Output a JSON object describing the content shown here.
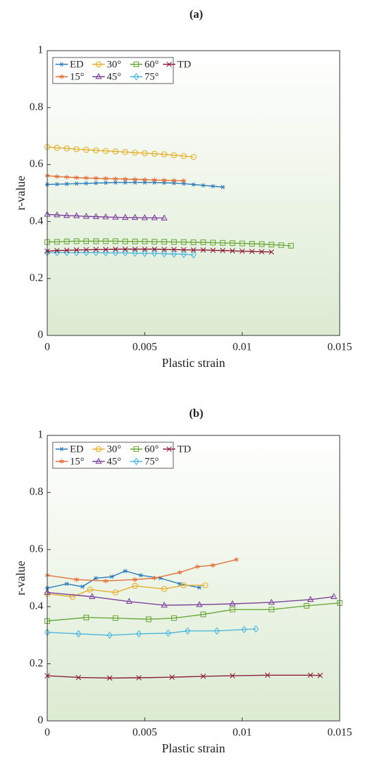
{
  "chart_data": [
    {
      "type": "line",
      "title": "(a)",
      "xlabel": "Plastic strain",
      "ylabel": "r-value",
      "xlim": [
        0,
        0.015
      ],
      "ylim": [
        0,
        1
      ],
      "xticks": [
        0,
        0.005,
        0.01,
        0.015
      ],
      "yticks": [
        0,
        0.2,
        0.4,
        0.6,
        0.8,
        1
      ],
      "series": [
        {
          "name": "ED",
          "color": "#2b7bba",
          "marker": "asterisk",
          "x": [
            0,
            0.0005,
            0.001,
            0.0015,
            0.002,
            0.0025,
            0.003,
            0.0035,
            0.004,
            0.0045,
            0.005,
            0.0055,
            0.006,
            0.0065,
            0.007,
            0.0075,
            0.008,
            0.0085,
            0.009
          ],
          "values": [
            0.53,
            0.531,
            0.532,
            0.533,
            0.534,
            0.535,
            0.536,
            0.537,
            0.537,
            0.537,
            0.537,
            0.537,
            0.536,
            0.535,
            0.533,
            0.53,
            0.527,
            0.524,
            0.521
          ]
        },
        {
          "name": "15°",
          "color": "#e2703a",
          "marker": "star",
          "x": [
            0,
            0.0005,
            0.001,
            0.0015,
            0.002,
            0.0025,
            0.003,
            0.0035,
            0.004,
            0.0045,
            0.005,
            0.0055,
            0.006,
            0.0065,
            0.007
          ],
          "values": [
            0.561,
            0.558,
            0.556,
            0.554,
            0.553,
            0.552,
            0.551,
            0.55,
            0.549,
            0.548,
            0.547,
            0.546,
            0.545,
            0.544,
            0.543
          ]
        },
        {
          "name": "30°",
          "color": "#e3ad2a",
          "marker": "circle",
          "x": [
            0,
            0.0005,
            0.001,
            0.0015,
            0.002,
            0.0025,
            0.003,
            0.0035,
            0.004,
            0.0045,
            0.005,
            0.0055,
            0.006,
            0.0065,
            0.007,
            0.0075
          ],
          "values": [
            0.662,
            0.659,
            0.657,
            0.654,
            0.652,
            0.65,
            0.648,
            0.646,
            0.644,
            0.642,
            0.64,
            0.638,
            0.636,
            0.633,
            0.63,
            0.627
          ]
        },
        {
          "name": "45°",
          "color": "#7c3f9e",
          "marker": "triangle",
          "x": [
            0,
            0.0005,
            0.001,
            0.0015,
            0.002,
            0.0025,
            0.003,
            0.0035,
            0.004,
            0.0045,
            0.005,
            0.0055,
            0.006
          ],
          "values": [
            0.425,
            0.423,
            0.421,
            0.42,
            0.418,
            0.417,
            0.416,
            0.415,
            0.414,
            0.414,
            0.413,
            0.413,
            0.412
          ]
        },
        {
          "name": "60°",
          "color": "#6aa83a",
          "marker": "square",
          "x": [
            0,
            0.0005,
            0.001,
            0.0015,
            0.002,
            0.0025,
            0.003,
            0.0035,
            0.004,
            0.0045,
            0.005,
            0.0055,
            0.006,
            0.0065,
            0.007,
            0.0075,
            0.008,
            0.0085,
            0.009,
            0.0095,
            0.01,
            0.0105,
            0.011,
            0.0115,
            0.012,
            0.0125
          ],
          "values": [
            0.328,
            0.329,
            0.33,
            0.331,
            0.331,
            0.331,
            0.331,
            0.331,
            0.33,
            0.33,
            0.33,
            0.329,
            0.329,
            0.328,
            0.328,
            0.327,
            0.327,
            0.326,
            0.325,
            0.324,
            0.323,
            0.322,
            0.321,
            0.319,
            0.317,
            0.315
          ]
        },
        {
          "name": "75°",
          "color": "#4db6df",
          "marker": "diamond",
          "x": [
            0,
            0.0005,
            0.001,
            0.0015,
            0.002,
            0.0025,
            0.003,
            0.0035,
            0.004,
            0.0045,
            0.005,
            0.0055,
            0.006,
            0.0065,
            0.007,
            0.0075
          ],
          "values": [
            0.291,
            0.291,
            0.291,
            0.291,
            0.291,
            0.291,
            0.29,
            0.29,
            0.29,
            0.289,
            0.288,
            0.288,
            0.287,
            0.286,
            0.285,
            0.283
          ]
        },
        {
          "name": "TD",
          "color": "#8c1c3c",
          "marker": "x",
          "x": [
            0,
            0.0005,
            0.001,
            0.0015,
            0.002,
            0.0025,
            0.003,
            0.0035,
            0.004,
            0.0045,
            0.005,
            0.0055,
            0.006,
            0.0065,
            0.007,
            0.0075,
            0.008,
            0.0085,
            0.009,
            0.0095,
            0.01,
            0.0105,
            0.011,
            0.0115
          ],
          "values": [
            0.296,
            0.298,
            0.299,
            0.3,
            0.301,
            0.302,
            0.302,
            0.303,
            0.303,
            0.303,
            0.303,
            0.303,
            0.302,
            0.302,
            0.301,
            0.3,
            0.3,
            0.299,
            0.298,
            0.297,
            0.296,
            0.295,
            0.294,
            0.293
          ]
        }
      ]
    },
    {
      "type": "line",
      "title": "(b)",
      "xlabel": "Plastic strain",
      "ylabel": "r-value",
      "xlim": [
        0,
        0.015
      ],
      "ylim": [
        0,
        1
      ],
      "xticks": [
        0,
        0.005,
        0.01,
        0.015
      ],
      "yticks": [
        0,
        0.2,
        0.4,
        0.6,
        0.8,
        1
      ],
      "series": [
        {
          "name": "ED",
          "color": "#2b7bba",
          "marker": "asterisk",
          "x": [
            0,
            0.001,
            0.0018,
            0.0025,
            0.0033,
            0.004,
            0.0048,
            0.0058,
            0.0068,
            0.0078
          ],
          "values": [
            0.465,
            0.48,
            0.47,
            0.5,
            0.505,
            0.525,
            0.51,
            0.5,
            0.48,
            0.467
          ]
        },
        {
          "name": "15°",
          "color": "#e2703a",
          "marker": "star",
          "x": [
            0,
            0.0015,
            0.003,
            0.0045,
            0.0055,
            0.0068,
            0.0077,
            0.0085,
            0.0097
          ],
          "values": [
            0.51,
            0.495,
            0.49,
            0.495,
            0.5,
            0.52,
            0.54,
            0.545,
            0.565
          ]
        },
        {
          "name": "30°",
          "color": "#e3ad2a",
          "marker": "circle",
          "x": [
            0,
            0.0013,
            0.0022,
            0.0035,
            0.0045,
            0.006,
            0.007,
            0.0081
          ],
          "values": [
            0.445,
            0.435,
            0.46,
            0.45,
            0.473,
            0.462,
            0.475,
            0.475
          ]
        },
        {
          "name": "45°",
          "color": "#7c3f9e",
          "marker": "triangle",
          "x": [
            0,
            0.0023,
            0.0042,
            0.006,
            0.0078,
            0.0095,
            0.0115,
            0.0135,
            0.0147
          ],
          "values": [
            0.45,
            0.435,
            0.418,
            0.405,
            0.407,
            0.41,
            0.415,
            0.425,
            0.435
          ]
        },
        {
          "name": "60°",
          "color": "#6aa83a",
          "marker": "square",
          "x": [
            0,
            0.002,
            0.0035,
            0.0052,
            0.0065,
            0.008,
            0.0095,
            0.0115,
            0.0133,
            0.015
          ],
          "values": [
            0.35,
            0.362,
            0.36,
            0.356,
            0.36,
            0.373,
            0.39,
            0.39,
            0.403,
            0.413
          ]
        },
        {
          "name": "75°",
          "color": "#4db6df",
          "marker": "diamond",
          "x": [
            0,
            0.0016,
            0.0032,
            0.0047,
            0.0062,
            0.0072,
            0.0087,
            0.0101,
            0.0107
          ],
          "values": [
            0.31,
            0.305,
            0.3,
            0.305,
            0.307,
            0.315,
            0.315,
            0.32,
            0.322
          ]
        },
        {
          "name": "TD",
          "color": "#8c1c3c",
          "marker": "x",
          "x": [
            0,
            0.0016,
            0.0032,
            0.0047,
            0.0064,
            0.008,
            0.0095,
            0.0113,
            0.0135,
            0.014
          ],
          "values": [
            0.158,
            0.152,
            0.15,
            0.151,
            0.153,
            0.156,
            0.158,
            0.16,
            0.16,
            0.159
          ]
        }
      ]
    }
  ]
}
